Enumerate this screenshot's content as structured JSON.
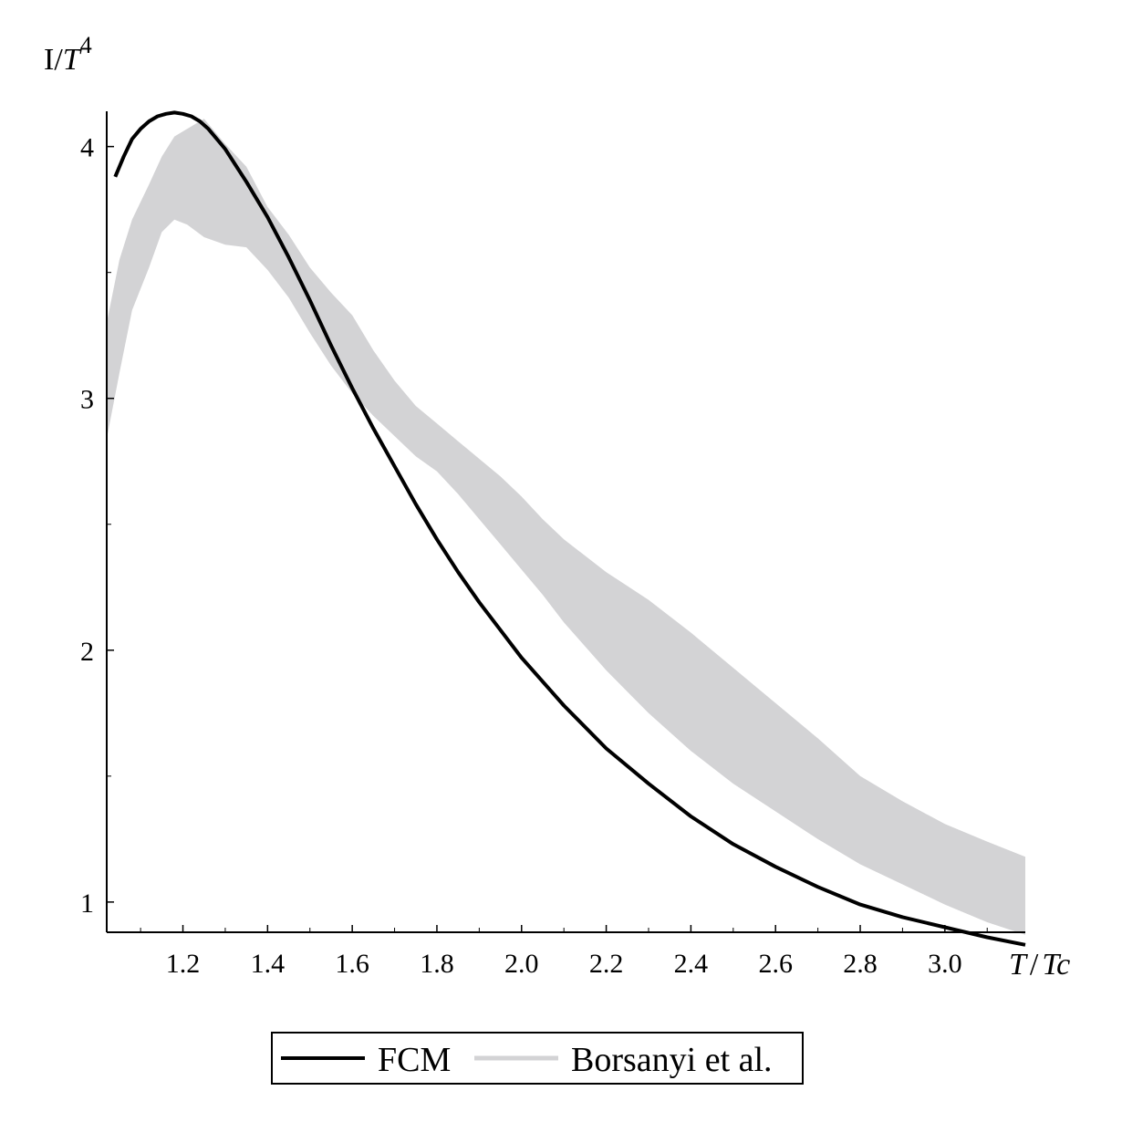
{
  "chart_data": {
    "type": "line",
    "title": "",
    "ylabel": {
      "main": "I/",
      "italic": "T",
      "sup": "4"
    },
    "xlabel": {
      "italic1": "T",
      "slash": "/",
      "italic2": "Tc"
    },
    "xlim": [
      1.02,
      3.19
    ],
    "ylim": [
      0.88,
      4.14
    ],
    "x_ticks": [
      {
        "value": 1.2,
        "label": "1.2"
      },
      {
        "value": 1.4,
        "label": "1.4"
      },
      {
        "value": 1.6,
        "label": "1.6"
      },
      {
        "value": 1.8,
        "label": "1.8"
      },
      {
        "value": 2.0,
        "label": "2.0"
      },
      {
        "value": 2.2,
        "label": "2.2"
      },
      {
        "value": 2.4,
        "label": "2.4"
      },
      {
        "value": 2.6,
        "label": "2.6"
      },
      {
        "value": 2.8,
        "label": "2.8"
      },
      {
        "value": 3.0,
        "label": "3.0"
      }
    ],
    "y_ticks": [
      {
        "value": 1,
        "label": "1"
      },
      {
        "value": 2,
        "label": "2"
      },
      {
        "value": 3,
        "label": "3"
      },
      {
        "value": 4,
        "label": "4"
      }
    ],
    "grid": false,
    "legend_position": "bottom-center",
    "series": [
      {
        "name": "FCM",
        "kind": "line",
        "color": "#000000",
        "x": [
          1.04,
          1.06,
          1.08,
          1.1,
          1.12,
          1.14,
          1.16,
          1.18,
          1.2,
          1.22,
          1.24,
          1.26,
          1.28,
          1.3,
          1.35,
          1.4,
          1.45,
          1.5,
          1.55,
          1.6,
          1.65,
          1.7,
          1.75,
          1.8,
          1.85,
          1.9,
          1.95,
          2.0,
          2.1,
          2.2,
          2.3,
          2.4,
          2.5,
          2.6,
          2.7,
          2.8,
          2.9,
          3.0,
          3.1,
          3.19
        ],
        "y": [
          3.88,
          3.96,
          4.03,
          4.07,
          4.1,
          4.12,
          4.13,
          4.135,
          4.13,
          4.12,
          4.1,
          4.07,
          4.03,
          3.99,
          3.86,
          3.72,
          3.56,
          3.39,
          3.21,
          3.04,
          2.88,
          2.73,
          2.58,
          2.44,
          2.31,
          2.19,
          2.08,
          1.97,
          1.78,
          1.61,
          1.47,
          1.34,
          1.23,
          1.14,
          1.06,
          0.99,
          0.94,
          0.9,
          0.86,
          0.83
        ]
      },
      {
        "name": "Borsanyi et al.",
        "kind": "band",
        "color": "#d3d3d5",
        "x": [
          1.02,
          1.05,
          1.08,
          1.12,
          1.15,
          1.18,
          1.21,
          1.25,
          1.3,
          1.35,
          1.4,
          1.45,
          1.5,
          1.55,
          1.6,
          1.65,
          1.7,
          1.75,
          1.8,
          1.85,
          1.9,
          1.95,
          2.0,
          2.05,
          2.1,
          2.2,
          2.3,
          2.4,
          2.5,
          2.6,
          2.7,
          2.8,
          2.9,
          3.0,
          3.1,
          3.19
        ],
        "lower": [
          2.84,
          3.1,
          3.35,
          3.52,
          3.66,
          3.71,
          3.69,
          3.64,
          3.61,
          3.6,
          3.51,
          3.4,
          3.26,
          3.13,
          3.02,
          2.93,
          2.85,
          2.77,
          2.71,
          2.62,
          2.52,
          2.42,
          2.32,
          2.22,
          2.11,
          1.92,
          1.75,
          1.6,
          1.47,
          1.36,
          1.25,
          1.15,
          1.07,
          0.99,
          0.92,
          0.87
        ],
        "upper": [
          3.3,
          3.55,
          3.71,
          3.85,
          3.96,
          4.04,
          4.07,
          4.11,
          4.01,
          3.92,
          3.76,
          3.65,
          3.52,
          3.42,
          3.33,
          3.19,
          3.07,
          2.97,
          2.9,
          2.83,
          2.76,
          2.69,
          2.61,
          2.52,
          2.44,
          2.31,
          2.2,
          2.07,
          1.93,
          1.79,
          1.65,
          1.5,
          1.4,
          1.31,
          1.24,
          1.18
        ]
      }
    ]
  }
}
